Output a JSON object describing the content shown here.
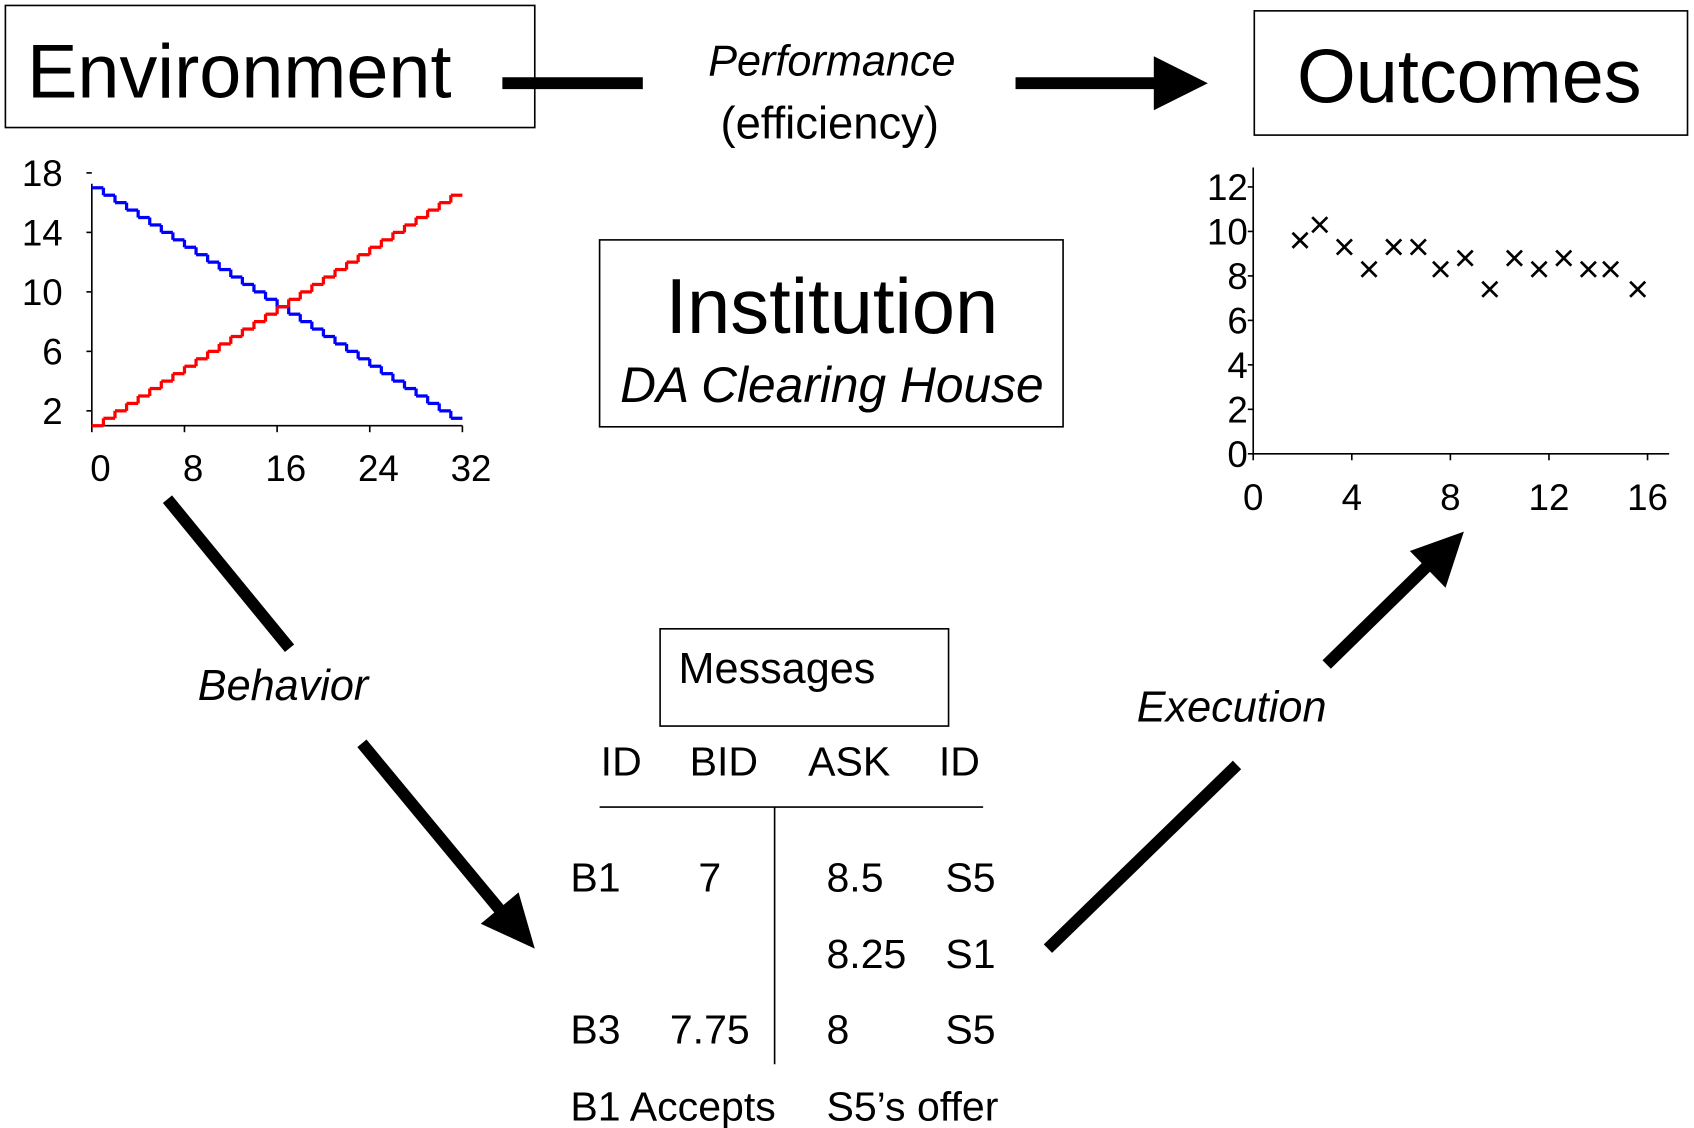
{
  "environment": {
    "title": "Environment"
  },
  "outcomes": {
    "title": "Outcomes"
  },
  "institution": {
    "title": "Institution",
    "subtitle": "DA Clearing House"
  },
  "performance": {
    "label": "Performance",
    "sublabel": "(efficiency)"
  },
  "behavior": {
    "label": "Behavior"
  },
  "execution": {
    "label": "Execution"
  },
  "messages": {
    "title": "Messages"
  },
  "table": {
    "columns": [
      "ID",
      "BID",
      "ASK",
      "ID"
    ],
    "rows": [
      [
        "B1",
        "7",
        "8.5",
        "S5"
      ],
      [
        null,
        null,
        "8.25",
        "S1"
      ],
      [
        "B3",
        "7.75",
        "8",
        "S5"
      ]
    ],
    "footer": [
      "B1 Accepts",
      "S5’s offer"
    ]
  },
  "chart_data": [
    {
      "type": "step",
      "x": [
        0,
        1,
        2,
        3,
        4,
        5,
        6,
        7,
        8,
        9,
        10,
        11,
        12,
        13,
        14,
        15,
        16,
        17,
        18,
        19,
        20,
        21,
        22,
        23,
        24,
        25,
        26,
        27,
        28,
        29,
        30,
        31
      ],
      "series": [
        {
          "color": "#0000ff",
          "values": [
            17,
            16.5,
            16,
            15.5,
            15,
            14.5,
            14,
            13.5,
            13,
            12.5,
            12,
            11.5,
            11,
            10.5,
            10,
            9.5,
            9,
            8.5,
            8,
            7.5,
            7,
            6.5,
            6,
            5.5,
            5,
            4.5,
            4,
            3.5,
            3,
            2.5,
            2,
            1.5
          ]
        },
        {
          "color": "#ff0000",
          "values": [
            1,
            1.5,
            2,
            2.5,
            3,
            3.5,
            4,
            4.5,
            5,
            5.5,
            6,
            6.5,
            7,
            7.5,
            8,
            8.5,
            9,
            9.5,
            10,
            10.5,
            11,
            11.5,
            12,
            12.5,
            13,
            13.5,
            14,
            14.5,
            15,
            15.5,
            16,
            16.5
          ]
        }
      ],
      "xlim": [
        0,
        32
      ],
      "xticks": [
        0,
        8,
        16,
        24,
        32
      ],
      "ylim": [
        1,
        18
      ],
      "yticks": [
        2,
        6,
        10,
        14,
        18
      ]
    },
    {
      "type": "scatter",
      "x": [
        1.9,
        2.7,
        3.7,
        4.7,
        5.7,
        6.7,
        7.6,
        8.6,
        9.6,
        10.6,
        11.6,
        12.6,
        13.6,
        14.5,
        15.6
      ],
      "values": [
        9.6,
        10.3,
        9.3,
        8.3,
        9.3,
        9.3,
        8.3,
        8.8,
        7.4,
        8.8,
        8.3,
        8.8,
        8.3,
        8.3,
        7.4
      ],
      "color": "#000000",
      "xlim": [
        0,
        16
      ],
      "xticks": [
        0,
        4,
        8,
        12,
        16
      ],
      "ylim": [
        0,
        12
      ],
      "yticks": [
        0,
        2,
        4,
        6,
        8,
        10,
        12
      ]
    }
  ]
}
